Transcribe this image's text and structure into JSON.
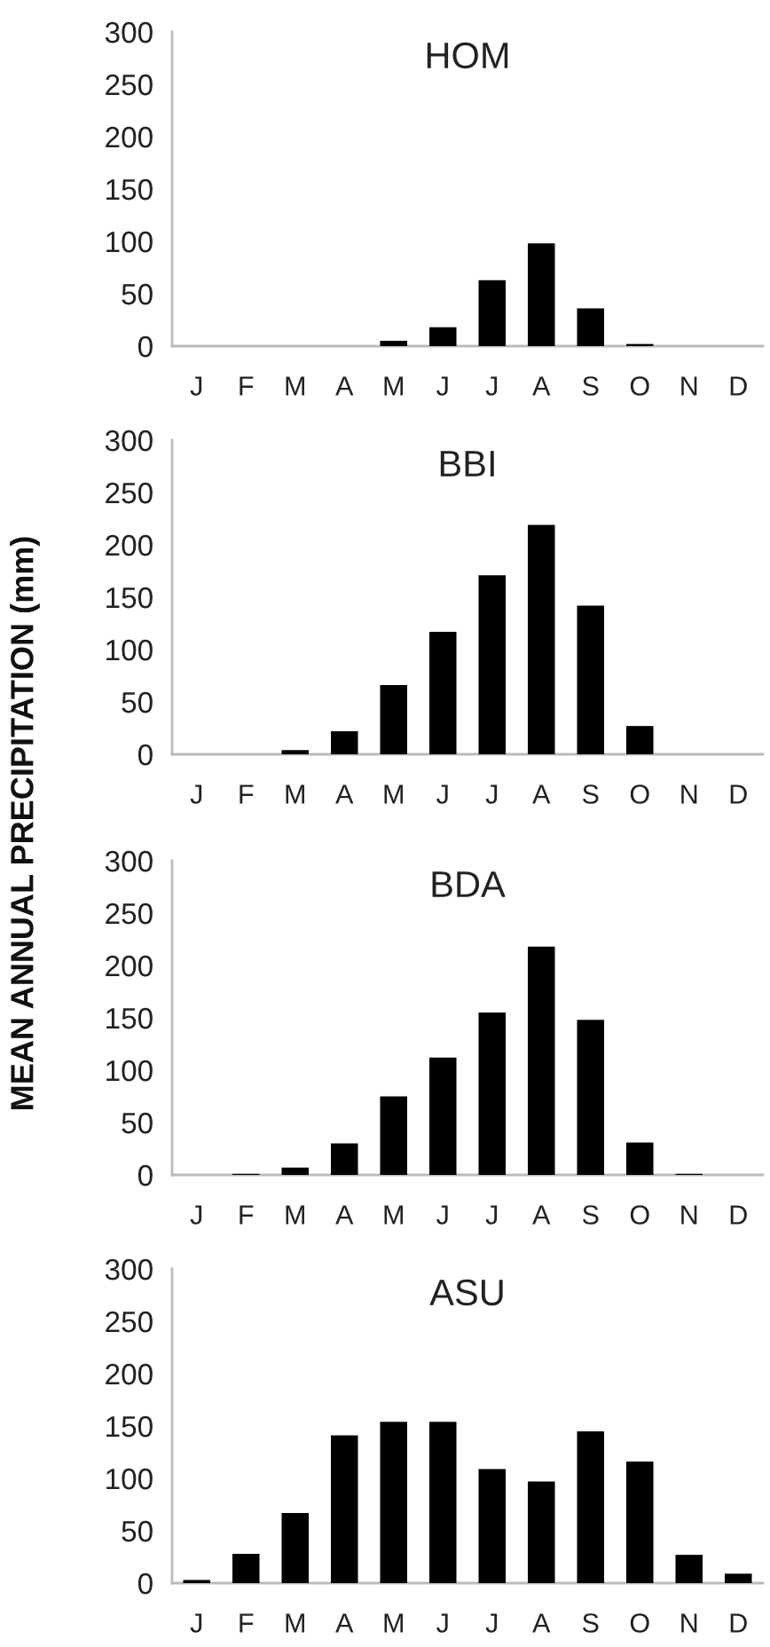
{
  "chart_data": [
    {
      "type": "bar",
      "title": "HOM",
      "categories": [
        "J",
        "F",
        "M",
        "A",
        "M",
        "J",
        "J",
        "A",
        "S",
        "O",
        "N",
        "D"
      ],
      "values": [
        0,
        0,
        0,
        0,
        5,
        18,
        63,
        98,
        36,
        2,
        0,
        0
      ],
      "color": "#000000",
      "ylim": [
        0,
        300
      ],
      "yticks": [
        0,
        50,
        100,
        150,
        200,
        250,
        300
      ],
      "grid": false
    },
    {
      "type": "bar",
      "title": "BBI",
      "ylabel": "MEAN ANNUAL PRECIPITATION (mm)",
      "categories": [
        "J",
        "F",
        "M",
        "A",
        "M",
        "J",
        "J",
        "A",
        "S",
        "O",
        "N",
        "D"
      ],
      "values": [
        0,
        0,
        4,
        22,
        66,
        117,
        171,
        219,
        142,
        27,
        0,
        0
      ],
      "color": "#000000",
      "ylim": [
        0,
        300
      ],
      "yticks": [
        0,
        50,
        100,
        150,
        200,
        250,
        300
      ],
      "grid": false
    },
    {
      "type": "bar",
      "title": "BDA",
      "categories": [
        "J",
        "F",
        "M",
        "A",
        "M",
        "J",
        "J",
        "A",
        "S",
        "O",
        "N",
        "D"
      ],
      "values": [
        0,
        1,
        7,
        30,
        75,
        112,
        155,
        218,
        148,
        31,
        1,
        0
      ],
      "color": "#000000",
      "ylim": [
        0,
        300
      ],
      "yticks": [
        0,
        50,
        100,
        150,
        200,
        250,
        300
      ],
      "grid": false
    },
    {
      "type": "bar",
      "title": "ASU",
      "categories": [
        "J",
        "F",
        "M",
        "A",
        "M",
        "J",
        "J",
        "A",
        "S",
        "O",
        "N",
        "D"
      ],
      "values": [
        3,
        28,
        67,
        141,
        154,
        154,
        109,
        97,
        145,
        116,
        27,
        9
      ],
      "color": "#000000",
      "ylim": [
        0,
        300
      ],
      "yticks": [
        0,
        50,
        100,
        150,
        200,
        250,
        300
      ],
      "grid": false
    }
  ]
}
